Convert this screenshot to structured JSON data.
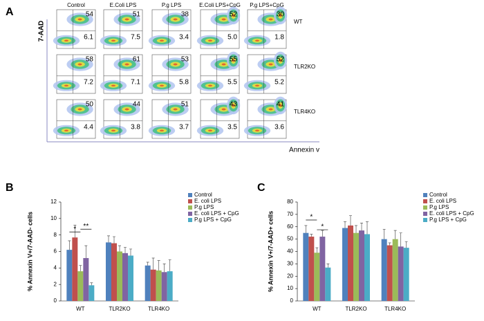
{
  "panel_label": "A",
  "flow": {
    "y_axis": "7-AAD",
    "x_axis": "Annexin v",
    "columns": [
      "Control",
      "E.Coli LPS",
      "P.g LPS",
      "E.Coli LPS+CpG",
      "P.g LPS+CpG"
    ],
    "rows": [
      {
        "label": "WT",
        "cells": [
          {
            "upper": "54",
            "lower": "6.1"
          },
          {
            "upper": "51",
            "lower": "7.5"
          },
          {
            "upper": "38",
            "lower": "3.4"
          },
          {
            "upper": "52",
            "lower": "5.0"
          },
          {
            "upper": "30",
            "lower": "1.8"
          }
        ]
      },
      {
        "label": "TLR2KO",
        "cells": [
          {
            "upper": "58",
            "lower": "7.2"
          },
          {
            "upper": "61",
            "lower": "7.1"
          },
          {
            "upper": "53",
            "lower": "5.8"
          },
          {
            "upper": "55",
            "lower": "5.5"
          },
          {
            "upper": "52",
            "lower": "5.2"
          }
        ]
      },
      {
        "label": "TLR4KO",
        "cells": [
          {
            "upper": "50",
            "lower": "4.4"
          },
          {
            "upper": "44",
            "lower": "3.8"
          },
          {
            "upper": "51",
            "lower": "3.7"
          },
          {
            "upper": "43",
            "lower": "3.5"
          },
          {
            "upper": "41",
            "lower": "3.6"
          }
        ]
      }
    ]
  },
  "chart_data": [
    {
      "type": "bar",
      "label": "B",
      "y_label": "% Annexin V+/7-AAD- cells",
      "categories": [
        "WT",
        "TLR2KO",
        "TLR4KO"
      ],
      "series": [
        {
          "name": "Control",
          "color": "#4f81bd",
          "values": [
            6.2,
            7.1,
            4.3
          ],
          "errors": [
            1.1,
            0.8,
            0.4
          ]
        },
        {
          "name": "E. coli LPS",
          "color": "#c0504d",
          "values": [
            7.7,
            7.0,
            3.8
          ],
          "errors": [
            1.5,
            0.8,
            1.4
          ]
        },
        {
          "name": "P.g LPS",
          "color": "#9bbb59",
          "values": [
            3.6,
            6.0,
            3.7
          ],
          "errors": [
            0.7,
            0.7,
            1.2
          ]
        },
        {
          "name": "E. coli LPS + CpG",
          "color": "#8064a2",
          "values": [
            5.2,
            5.8,
            3.5
          ],
          "errors": [
            1.5,
            0.7,
            1.0
          ]
        },
        {
          "name": "P.g LPS + CpG",
          "color": "#4bacc6",
          "values": [
            1.9,
            5.5,
            3.6
          ],
          "errors": [
            0.3,
            0.8,
            1.4
          ]
        }
      ],
      "ylim": [
        0,
        12
      ],
      "yticks": [
        0,
        2,
        4,
        6,
        8,
        10,
        12
      ],
      "annotations": [
        "*",
        "**"
      ]
    },
    {
      "type": "bar",
      "label": "C",
      "y_label": "% Annexin V+/7-AAD+ cells",
      "categories": [
        "WT",
        "TLR2KO",
        "TLR4KO"
      ],
      "series": [
        {
          "name": "Control",
          "color": "#4f81bd",
          "values": [
            55,
            59,
            50
          ],
          "errors": [
            6,
            5,
            8
          ]
        },
        {
          "name": "E. coli LPS",
          "color": "#c0504d",
          "values": [
            52,
            61,
            45
          ],
          "errors": [
            2,
            8,
            2
          ]
        },
        {
          "name": "P.g LPS",
          "color": "#9bbb59",
          "values": [
            39,
            55,
            50
          ],
          "errors": [
            4,
            6,
            7
          ]
        },
        {
          "name": "E. coli LPS + CpG",
          "color": "#8064a2",
          "values": [
            52,
            57,
            44
          ],
          "errors": [
            5,
            6,
            11
          ]
        },
        {
          "name": "P.g LPS + CpG",
          "color": "#4bacc6",
          "values": [
            27,
            54,
            43
          ],
          "errors": [
            3,
            10,
            5
          ]
        }
      ],
      "ylim": [
        0,
        80
      ],
      "yticks": [
        0,
        10,
        20,
        30,
        40,
        50,
        60,
        70,
        80
      ],
      "annotations": [
        "*",
        "*"
      ]
    }
  ]
}
